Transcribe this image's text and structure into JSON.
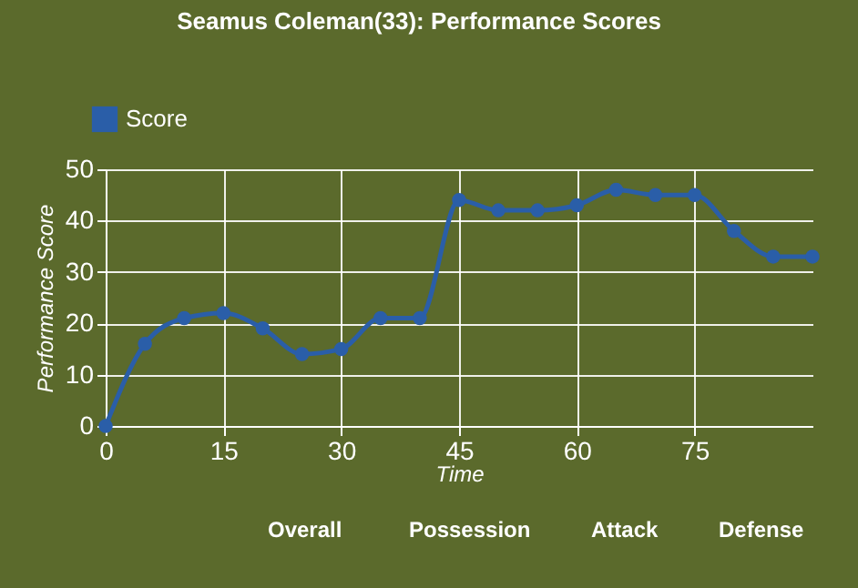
{
  "chart_data": {
    "type": "line",
    "title": "Seamus Coleman(33): Performance Scores",
    "xlabel": "Time",
    "ylabel": "Performance Score",
    "x": [
      0,
      5,
      10,
      15,
      20,
      25,
      30,
      35,
      40,
      45,
      50,
      55,
      60,
      65,
      70,
      75,
      80,
      85,
      90
    ],
    "series": [
      {
        "name": "Score",
        "color": "#2a5ea8",
        "values": [
          0,
          16,
          21,
          22,
          19,
          14,
          15,
          21,
          21,
          44,
          42,
          42,
          43,
          46,
          45,
          45,
          38,
          33,
          33
        ]
      }
    ],
    "xlim": [
      0,
      90
    ],
    "xticks": [
      0,
      15,
      30,
      45,
      60,
      75
    ],
    "ylim": [
      0,
      50
    ],
    "yticks": [
      0,
      10,
      20,
      30,
      40,
      50
    ],
    "grid": true,
    "legend": "top left",
    "marker": "circle",
    "line_style": "solid",
    "annotations": [
      "Overall",
      "Possession",
      "Attack",
      "Defense"
    ]
  }
}
